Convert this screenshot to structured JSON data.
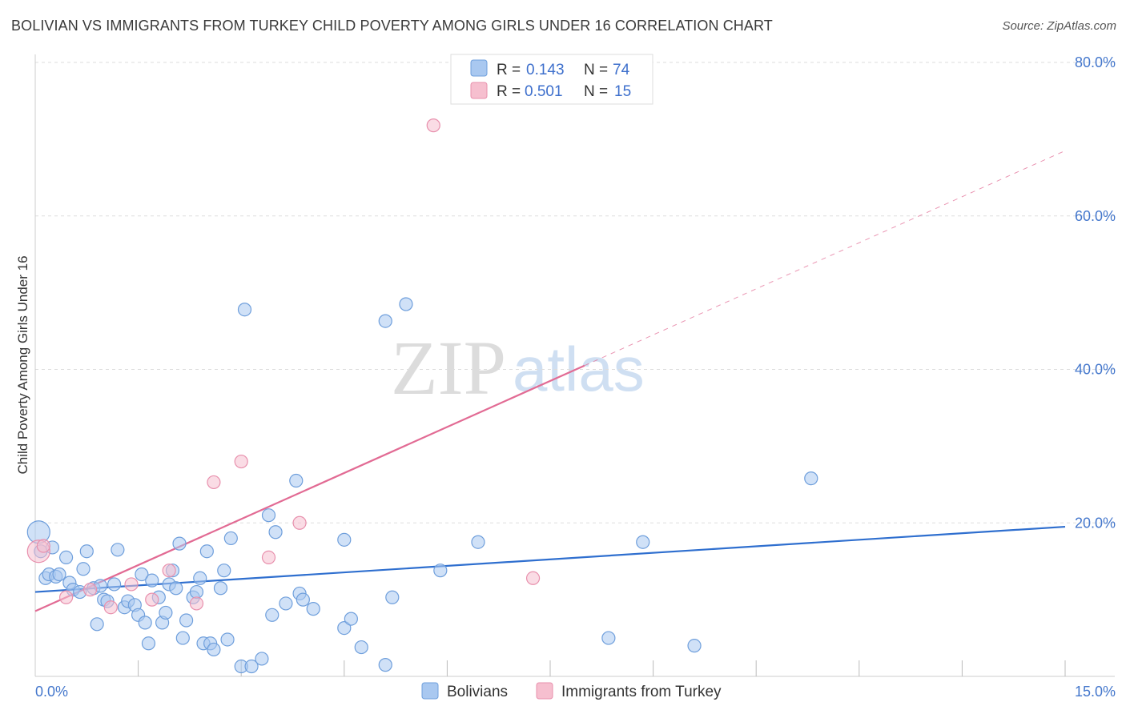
{
  "title": "BOLIVIAN VS IMMIGRANTS FROM TURKEY CHILD POVERTY AMONG GIRLS UNDER 16 CORRELATION CHART",
  "source": "Source: ZipAtlas.com",
  "watermark": {
    "zip": "ZIP",
    "atlas": "atlas"
  },
  "colors": {
    "blue_fill": "#a9c8f0",
    "blue_stroke": "#6f9fdc",
    "blue_line": "#2f6fcf",
    "pink_fill": "#f6bfcf",
    "pink_stroke": "#e890ad",
    "pink_line": "#e26b94",
    "tick_text": "#4477cc",
    "grid": "#dddddd"
  },
  "legend": {
    "r_label": "R =",
    "n_label": "N =",
    "rows": [
      {
        "series": "Bolivians",
        "r": "0.143",
        "n": "74"
      },
      {
        "series": "Immigrants from Turkey",
        "r": "0.501",
        "n": "15"
      }
    ]
  },
  "chart_data": {
    "type": "scatter",
    "title": "BOLIVIAN VS IMMIGRANTS FROM TURKEY CHILD POVERTY AMONG GIRLS UNDER 16 CORRELATION CHART",
    "xlabel": "",
    "ylabel": "Child Poverty Among Girls Under 16",
    "xlim": [
      0,
      15
    ],
    "ylim": [
      0,
      80
    ],
    "x_tick_labels": [
      {
        "value": 0,
        "label": "0.0%"
      },
      {
        "value": 15,
        "label": "15.0%"
      }
    ],
    "y_ticks": [
      {
        "value": 20,
        "label": "20.0%"
      },
      {
        "value": 40,
        "label": "40.0%"
      },
      {
        "value": 60,
        "label": "60.0%"
      },
      {
        "value": 80,
        "label": "80.0%"
      }
    ],
    "x_minor_ticks": [
      1.5,
      3.0,
      4.5,
      6.0,
      7.5,
      9.0,
      10.5,
      12.0,
      13.5,
      15.0
    ],
    "series": [
      {
        "name": "Bolivians",
        "points": [
          [
            0.05,
            18.8
          ],
          [
            0.08,
            16.3
          ],
          [
            0.15,
            12.8
          ],
          [
            0.2,
            13.3
          ],
          [
            0.25,
            16.8
          ],
          [
            0.3,
            13.0
          ],
          [
            0.35,
            13.3
          ],
          [
            0.45,
            15.5
          ],
          [
            0.5,
            12.2
          ],
          [
            0.55,
            11.3
          ],
          [
            0.65,
            11.0
          ],
          [
            0.7,
            14.0
          ],
          [
            0.75,
            16.3
          ],
          [
            0.85,
            11.5
          ],
          [
            0.9,
            6.8
          ],
          [
            0.95,
            11.8
          ],
          [
            1.0,
            10.0
          ],
          [
            1.05,
            9.8
          ],
          [
            1.15,
            12.0
          ],
          [
            1.2,
            16.5
          ],
          [
            1.3,
            9.0
          ],
          [
            1.35,
            9.8
          ],
          [
            1.45,
            9.3
          ],
          [
            1.5,
            8.0
          ],
          [
            1.55,
            13.3
          ],
          [
            1.6,
            7.0
          ],
          [
            1.65,
            4.3
          ],
          [
            1.7,
            12.5
          ],
          [
            1.8,
            10.3
          ],
          [
            1.85,
            7.0
          ],
          [
            1.9,
            8.3
          ],
          [
            1.95,
            12.0
          ],
          [
            2.0,
            13.8
          ],
          [
            2.05,
            11.5
          ],
          [
            2.1,
            17.3
          ],
          [
            2.15,
            5.0
          ],
          [
            2.2,
            7.3
          ],
          [
            2.3,
            10.3
          ],
          [
            2.35,
            11.0
          ],
          [
            2.4,
            12.8
          ],
          [
            2.45,
            4.3
          ],
          [
            2.5,
            16.3
          ],
          [
            2.55,
            4.3
          ],
          [
            2.6,
            3.5
          ],
          [
            2.7,
            11.5
          ],
          [
            2.75,
            13.8
          ],
          [
            2.8,
            4.8
          ],
          [
            2.85,
            18.0
          ],
          [
            3.0,
            1.3
          ],
          [
            3.05,
            47.8
          ],
          [
            3.15,
            1.3
          ],
          [
            3.3,
            2.3
          ],
          [
            3.4,
            21.0
          ],
          [
            3.45,
            8.0
          ],
          [
            3.5,
            18.8
          ],
          [
            3.65,
            9.5
          ],
          [
            3.8,
            25.5
          ],
          [
            3.85,
            10.8
          ],
          [
            3.9,
            10.0
          ],
          [
            4.05,
            8.8
          ],
          [
            4.5,
            17.8
          ],
          [
            4.5,
            6.3
          ],
          [
            4.6,
            7.5
          ],
          [
            4.75,
            3.8
          ],
          [
            5.1,
            1.5
          ],
          [
            5.1,
            46.3
          ],
          [
            5.2,
            10.3
          ],
          [
            5.4,
            48.5
          ],
          [
            5.9,
            13.8
          ],
          [
            6.45,
            17.5
          ],
          [
            8.35,
            5.0
          ],
          [
            8.85,
            17.5
          ],
          [
            9.6,
            4.0
          ],
          [
            11.3,
            25.8
          ]
        ]
      },
      {
        "name": "Immigrants from Turkey",
        "points": [
          [
            0.05,
            16.3
          ],
          [
            0.12,
            17.0
          ],
          [
            0.45,
            10.3
          ],
          [
            0.8,
            11.3
          ],
          [
            1.1,
            9.0
          ],
          [
            1.4,
            12.0
          ],
          [
            1.7,
            10.0
          ],
          [
            1.95,
            13.8
          ],
          [
            2.35,
            9.5
          ],
          [
            2.6,
            25.3
          ],
          [
            3.0,
            28.0
          ],
          [
            3.4,
            15.5
          ],
          [
            3.85,
            20.0
          ],
          [
            5.8,
            71.8
          ],
          [
            7.25,
            12.8
          ]
        ]
      }
    ],
    "trendlines": [
      {
        "series": "Bolivians",
        "x0": 0,
        "y0": 11.0,
        "x1": 15,
        "y1": 19.5,
        "style": "solid"
      },
      {
        "series": "Immigrants from Turkey",
        "x0": 0,
        "y0": 8.5,
        "x1": 8.0,
        "y1": 40.5,
        "style": "solid"
      },
      {
        "series": "Immigrants from Turkey",
        "x0": 8.0,
        "y0": 40.5,
        "x1": 15,
        "y1": 68.5,
        "style": "dashed"
      }
    ],
    "grid": true,
    "legend_position": "top-center"
  }
}
